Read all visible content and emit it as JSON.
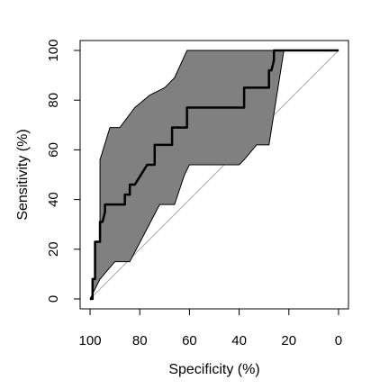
{
  "chart_data": {
    "type": "line",
    "title": "",
    "xlabel": "Specificity (%)",
    "ylabel": "Sensitivity (%)",
    "xlim": [
      100,
      0
    ],
    "ylim": [
      0,
      100
    ],
    "x_reversed": true,
    "grid": false,
    "legend": "none",
    "xticks": [
      100,
      80,
      60,
      40,
      20,
      0
    ],
    "yticks": [
      0,
      20,
      40,
      60,
      80,
      100
    ],
    "xtick_labels": [
      "100",
      "80",
      "60",
      "40",
      "20",
      "0"
    ],
    "ytick_labels": [
      "0",
      "20",
      "40",
      "60",
      "80",
      "100"
    ],
    "reference_line": {
      "x": [
        100,
        0
      ],
      "y": [
        0,
        100
      ],
      "color": "#aaaaaa"
    },
    "confidence_band": {
      "fill_color": "#808080",
      "edge_color": "#000000",
      "upper": {
        "x": [
          100,
          99,
          99,
          98,
          98,
          96,
          96,
          92,
          88,
          82,
          76,
          70,
          66,
          61,
          60,
          26,
          0
        ],
        "y": [
          0,
          0,
          8,
          8,
          23,
          23,
          56,
          69,
          69,
          77,
          82,
          85,
          89,
          100,
          100,
          100,
          100
        ]
      },
      "lower": {
        "x": [
          100,
          96,
          90,
          88,
          84,
          72,
          66,
          62,
          60,
          40,
          38,
          33,
          31,
          28,
          22,
          0
        ],
        "y": [
          0,
          8,
          15,
          15,
          15,
          38,
          38,
          50,
          54,
          54,
          56,
          62,
          62,
          62,
          100,
          100
        ]
      }
    },
    "series": [
      {
        "color": "#000000",
        "x": [
          100,
          99,
          99,
          98,
          98,
          96,
          96,
          95,
          94,
          94,
          86,
          86,
          84,
          84,
          82,
          82,
          77,
          74,
          74,
          67,
          67,
          61,
          61,
          38,
          38,
          30,
          30,
          28,
          28,
          27,
          26,
          26,
          0
        ],
        "y": [
          0,
          0,
          8,
          8,
          23,
          23,
          31,
          31,
          35,
          38,
          38,
          42,
          42,
          46,
          46,
          46,
          54,
          54,
          62,
          62,
          69,
          69,
          77,
          77,
          85,
          85,
          85,
          85,
          92,
          92,
          96,
          100,
          100
        ]
      }
    ]
  }
}
